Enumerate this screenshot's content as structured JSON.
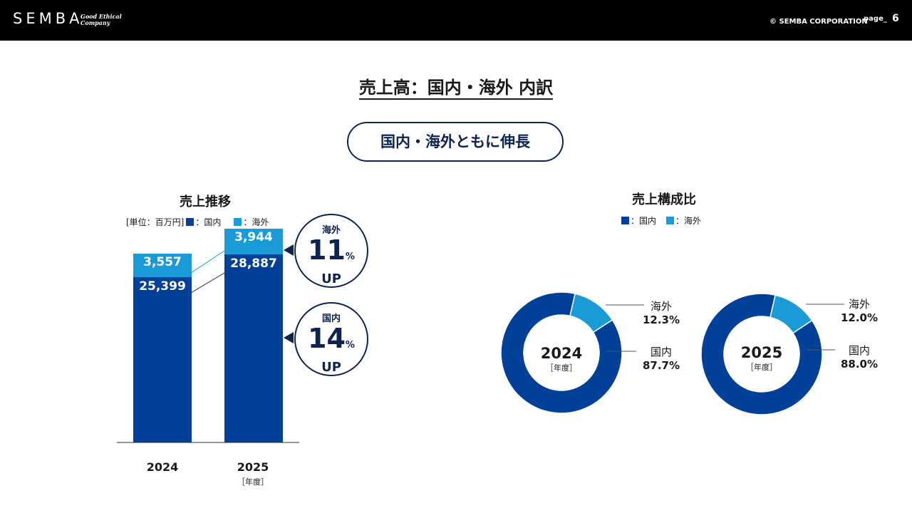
{
  "header": {
    "logo": "SEMBA",
    "tagline_1": "Good Ethical",
    "tagline_2": "Company",
    "copyright": "© SEMBA CORPORATION",
    "page_label": "page_",
    "page_number": "6"
  },
  "title": "売上高：国内・海外 内訳",
  "headline": "国内・海外ともに伸長",
  "colors": {
    "domestic": "#004098",
    "overseas": "#1a9ad6",
    "navy": "#0d2450",
    "header_bg": "#000000"
  },
  "chart_data": [
    {
      "type": "bar",
      "title": "売上推移",
      "unit_label": "[単位：百万円]",
      "legend": [
        "：国内",
        "：海外"
      ],
      "categories": [
        "2024",
        "2025"
      ],
      "xunit": "［年度］",
      "stacked": true,
      "series": [
        {
          "name": "国内",
          "values": [
            25399,
            28887
          ],
          "labels": [
            "25,399",
            "28,887"
          ]
        },
        {
          "name": "海外",
          "values": [
            3557,
            3944
          ],
          "labels": [
            "3,557",
            "3,944"
          ]
        }
      ],
      "ylim": [
        0,
        33000
      ],
      "callouts": [
        {
          "name": "海外",
          "value": "11",
          "unit": "%",
          "suffix": "UP"
        },
        {
          "name": "国内",
          "value": "14",
          "unit": "%",
          "suffix": "UP"
        }
      ]
    },
    {
      "type": "pie",
      "title": "売上構成比",
      "legend": [
        "：国内",
        "：海外"
      ],
      "donuts": [
        {
          "year": "2024",
          "unit": "［年度］",
          "slices": [
            {
              "name": "海外",
              "value": 12.3,
              "label": "12.3%"
            },
            {
              "name": "国内",
              "value": 87.7,
              "label": "87.7%"
            }
          ]
        },
        {
          "year": "2025",
          "unit": "［年度］",
          "slices": [
            {
              "name": "海外",
              "value": 12.0,
              "label": "12.0%"
            },
            {
              "name": "国内",
              "value": 88.0,
              "label": "88.0%"
            }
          ]
        }
      ]
    }
  ]
}
